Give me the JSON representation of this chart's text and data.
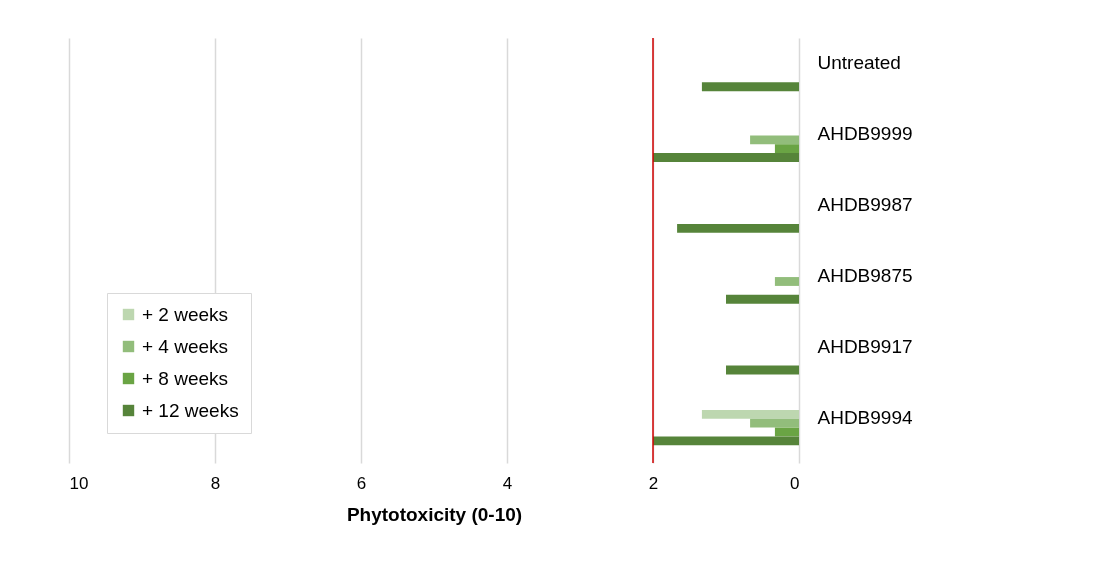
{
  "chart_data": {
    "type": "bar",
    "orientation": "horizontal",
    "xlabel": "Phytotoxicity (0-10)",
    "categories": [
      "Untreated",
      "AHDB9999",
      "AHDB9987",
      "AHDB9875",
      "AHDB9917",
      "AHDB9994"
    ],
    "series": [
      {
        "name": "+ 2 weeks",
        "color": "#bdd7b0",
        "values": [
          0,
          0,
          0,
          0,
          0,
          1.33
        ]
      },
      {
        "name": "+ 4 weeks",
        "color": "#92bd7b",
        "values": [
          0,
          0.67,
          0,
          0.33,
          0,
          0.67
        ]
      },
      {
        "name": "+ 8 weeks",
        "color": "#6aa444",
        "values": [
          0,
          0.33,
          0,
          0,
          0,
          0.33
        ]
      },
      {
        "name": "+ 12 weeks",
        "color": "#56843a",
        "values": [
          1.33,
          2,
          1.67,
          1,
          1,
          2
        ]
      }
    ],
    "xlim": [
      10,
      0
    ],
    "xticks": [
      10,
      8,
      6,
      4,
      2,
      0
    ],
    "grid": "x",
    "legend": "bottom left",
    "ref_lines": [
      {
        "axis": "x",
        "value": 2,
        "color": "#d00000"
      }
    ]
  }
}
